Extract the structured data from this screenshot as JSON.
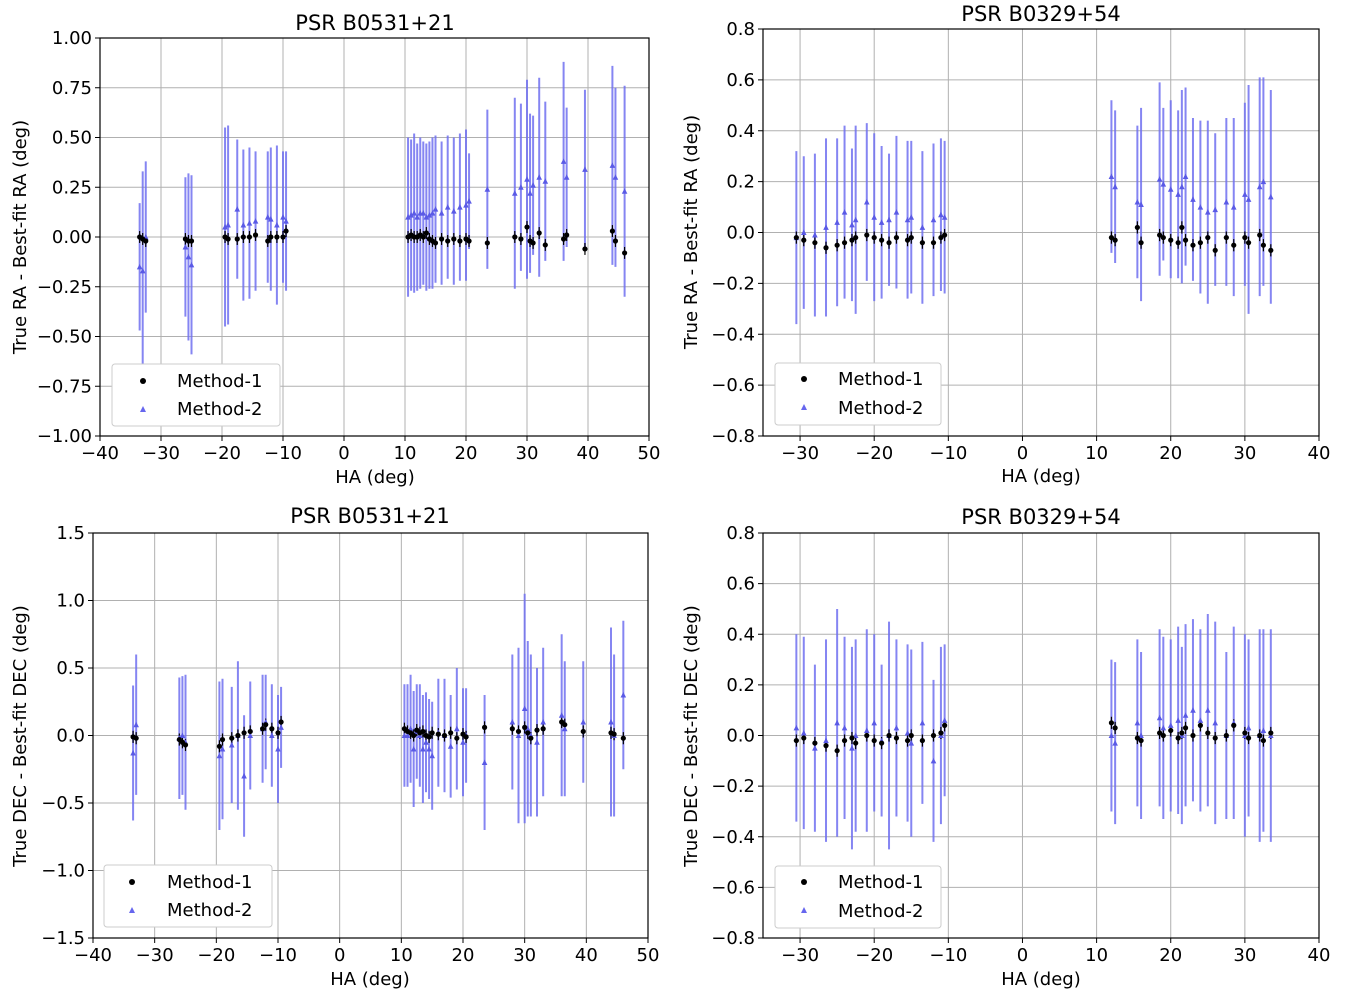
{
  "chart_data": [
    {
      "type": "scatter",
      "title": "PSR B0531+21",
      "xlabel": "HA (deg)",
      "ylabel": "True RA - Best-fit RA (deg)",
      "xlim": [
        -40,
        50
      ],
      "ylim": [
        -1.0,
        1.0
      ],
      "xticks": [
        -40,
        -30,
        -20,
        -10,
        0,
        10,
        20,
        30,
        40,
        50
      ],
      "xtick_labels": [
        "−40",
        "−30",
        "−20",
        "−10",
        "0",
        "10",
        "20",
        "30",
        "40",
        "50"
      ],
      "yticks": [
        -1.0,
        -0.75,
        -0.5,
        -0.25,
        0.0,
        0.25,
        0.5,
        0.75,
        1.0
      ],
      "ytick_labels": [
        "−1.00",
        "−0.75",
        "−0.50",
        "−0.25",
        "0.00",
        "0.25",
        "0.50",
        "0.75",
        "1.00"
      ],
      "grid": true,
      "legend_position": "lower-left",
      "series": [
        {
          "name": "Method-1",
          "marker": "circle",
          "color": "#000000",
          "x": [
            -33.5,
            -33,
            -32.5,
            -26,
            -25.5,
            -25,
            -19.5,
            -19,
            -17.5,
            -16.5,
            -15.5,
            -14.5,
            -12.5,
            -12,
            -11,
            -10,
            -9.5,
            10.5,
            11,
            11.5,
            12,
            12.5,
            13,
            13.5,
            14,
            14.5,
            15,
            16,
            17,
            18,
            19,
            20,
            20.5,
            23.5,
            28,
            29,
            30,
            30.5,
            31,
            32,
            33,
            36,
            36.5,
            39.5,
            44,
            44.5,
            46
          ],
          "y": [
            0.0,
            -0.01,
            -0.02,
            -0.01,
            -0.02,
            -0.02,
            0.0,
            -0.01,
            -0.01,
            0.0,
            0.0,
            0.01,
            -0.02,
            0.0,
            0.0,
            0.0,
            0.03,
            0.0,
            0.01,
            0.0,
            0.0,
            0.01,
            0.0,
            0.02,
            -0.01,
            -0.02,
            -0.03,
            -0.01,
            -0.02,
            -0.01,
            -0.02,
            -0.01,
            -0.02,
            -0.03,
            0.0,
            -0.01,
            0.05,
            -0.02,
            -0.03,
            0.02,
            -0.04,
            -0.01,
            0.01,
            -0.06,
            0.03,
            -0.02,
            -0.08
          ]
        },
        {
          "name": "Method-2",
          "marker": "triangle",
          "color": "#6666ee",
          "x": [
            -33.5,
            -33,
            -32.5,
            -26,
            -25.5,
            -25,
            -19.5,
            -19,
            -17.5,
            -16.5,
            -15.5,
            -14.5,
            -12.5,
            -12,
            -11,
            -10,
            -9.5,
            10.5,
            11,
            11.5,
            12,
            12.5,
            13,
            13.5,
            14,
            14.5,
            15,
            16,
            17,
            18,
            19,
            20,
            20.5,
            23.5,
            28,
            29,
            30,
            30.5,
            31,
            32,
            33,
            36,
            36.5,
            39.5,
            44,
            44.5,
            46
          ],
          "y": [
            -0.15,
            -0.17,
            0.0,
            -0.05,
            -0.1,
            -0.14,
            0.05,
            0.06,
            0.14,
            0.06,
            0.07,
            0.08,
            0.1,
            0.09,
            0.06,
            0.1,
            0.08,
            0.1,
            0.11,
            0.12,
            0.1,
            0.12,
            0.12,
            0.1,
            0.11,
            0.12,
            0.14,
            0.12,
            0.15,
            0.13,
            0.15,
            0.16,
            0.18,
            0.24,
            0.22,
            0.25,
            0.29,
            0.22,
            0.26,
            0.3,
            0.28,
            0.38,
            0.3,
            0.34,
            0.36,
            0.3,
            0.23
          ]
        }
      ]
    },
    {
      "type": "scatter",
      "title": "PSR B0329+54",
      "xlabel": "HA (deg)",
      "ylabel": "True RA - Best-fit RA (deg)",
      "xlim": [
        -35,
        40
      ],
      "ylim": [
        -0.8,
        0.8
      ],
      "xticks": [
        -30,
        -20,
        -10,
        0,
        10,
        20,
        30,
        40
      ],
      "xtick_labels": [
        "−30",
        "−20",
        "−10",
        "0",
        "10",
        "20",
        "30",
        "40"
      ],
      "yticks": [
        -0.8,
        -0.6,
        -0.4,
        -0.2,
        0.0,
        0.2,
        0.4,
        0.6,
        0.8
      ],
      "ytick_labels": [
        "−0.8",
        "−0.6",
        "−0.4",
        "−0.2",
        "0.0",
        "0.2",
        "0.4",
        "0.6",
        "0.8"
      ],
      "grid": true,
      "legend_position": "lower-left",
      "series": [
        {
          "name": "Method-1",
          "marker": "circle",
          "color": "#000000",
          "x": [
            -30.5,
            -29.5,
            -28,
            -26.5,
            -25,
            -24,
            -23,
            -22.5,
            -21,
            -20,
            -19,
            -18,
            -17,
            -15.5,
            -15,
            -13.5,
            -12,
            -11,
            -10.5,
            12,
            12.5,
            15.5,
            16,
            18.5,
            19,
            20,
            21,
            21.5,
            22,
            23,
            24,
            25,
            26,
            27.5,
            28.5,
            30,
            30.5,
            32,
            32.5,
            33.5
          ],
          "y": [
            -0.02,
            -0.03,
            -0.04,
            -0.06,
            -0.05,
            -0.04,
            -0.03,
            -0.02,
            -0.01,
            -0.02,
            -0.03,
            -0.04,
            -0.02,
            -0.03,
            -0.02,
            -0.04,
            -0.04,
            -0.02,
            -0.01,
            -0.02,
            -0.03,
            0.02,
            -0.04,
            -0.01,
            -0.02,
            -0.03,
            -0.04,
            0.02,
            -0.03,
            -0.05,
            -0.04,
            -0.02,
            -0.07,
            -0.02,
            -0.05,
            -0.02,
            -0.04,
            -0.01,
            -0.05,
            -0.07
          ]
        },
        {
          "name": "Method-2",
          "marker": "triangle",
          "color": "#6666ee",
          "x": [
            -30.5,
            -29.5,
            -28,
            -26.5,
            -25,
            -24,
            -23,
            -22.5,
            -21,
            -20,
            -19,
            -18,
            -17,
            -15.5,
            -15,
            -13.5,
            -12,
            -11,
            -10.5,
            12,
            12.5,
            15.5,
            16,
            18.5,
            19,
            20,
            21,
            21.5,
            22,
            23,
            24,
            25,
            26,
            27.5,
            28.5,
            30,
            30.5,
            32,
            32.5,
            33.5
          ],
          "y": [
            -0.02,
            0.0,
            -0.01,
            0.02,
            0.04,
            0.08,
            0.03,
            0.05,
            0.12,
            0.06,
            0.04,
            0.05,
            0.08,
            0.05,
            0.06,
            0.02,
            0.05,
            0.07,
            0.06,
            0.22,
            0.18,
            0.12,
            0.11,
            0.21,
            0.19,
            0.17,
            0.15,
            0.18,
            0.22,
            0.13,
            0.1,
            0.08,
            0.09,
            0.12,
            0.1,
            0.15,
            0.13,
            0.18,
            0.2,
            0.14
          ]
        }
      ]
    },
    {
      "type": "scatter",
      "title": "PSR B0531+21",
      "xlabel": "HA (deg)",
      "ylabel": "True DEC - Best-fit DEC (deg)",
      "xlim": [
        -40,
        50
      ],
      "ylim": [
        -1.5,
        1.5
      ],
      "xticks": [
        -40,
        -30,
        -20,
        -10,
        0,
        10,
        20,
        30,
        40,
        50
      ],
      "xtick_labels": [
        "−40",
        "−30",
        "−20",
        "−10",
        "0",
        "10",
        "20",
        "30",
        "40",
        "50"
      ],
      "yticks": [
        -1.5,
        -1.0,
        -0.5,
        0.0,
        0.5,
        1.0,
        1.5
      ],
      "ytick_labels": [
        "−1.5",
        "−1.0",
        "−0.5",
        "0.0",
        "0.5",
        "1.0",
        "1.5"
      ],
      "grid": true,
      "legend_position": "lower-left",
      "series": [
        {
          "name": "Method-1",
          "marker": "circle",
          "color": "#000000",
          "x": [
            -33.5,
            -33,
            -26,
            -25.5,
            -25,
            -19.5,
            -19,
            -17.5,
            -16.5,
            -15.5,
            -14.5,
            -12.5,
            -12,
            -11,
            -10,
            -9.5,
            10.5,
            11,
            11.5,
            12,
            12.5,
            13,
            13.5,
            14,
            14.5,
            15,
            16,
            17,
            18,
            19,
            20,
            20.5,
            23.5,
            28,
            29,
            30,
            30.5,
            31,
            32,
            33,
            36,
            36.5,
            39.5,
            44,
            44.5,
            46
          ],
          "y": [
            -0.01,
            -0.02,
            -0.03,
            -0.05,
            -0.07,
            -0.08,
            -0.03,
            -0.02,
            0.0,
            0.02,
            0.03,
            0.05,
            0.08,
            0.05,
            0.02,
            0.1,
            0.05,
            0.03,
            0.02,
            0.0,
            0.04,
            0.02,
            0.03,
            0.0,
            -0.01,
            0.02,
            0.01,
            0.0,
            0.02,
            -0.02,
            0.01,
            -0.01,
            0.06,
            0.05,
            0.03,
            0.06,
            0.02,
            -0.02,
            0.04,
            0.05,
            0.1,
            0.08,
            0.03,
            0.02,
            0.01,
            -0.02
          ]
        },
        {
          "name": "Method-2",
          "marker": "triangle",
          "color": "#6666ee",
          "x": [
            -33.5,
            -33,
            -26,
            -25.5,
            -25,
            -19.5,
            -19,
            -17.5,
            -16.5,
            -15.5,
            -14.5,
            -12.5,
            -12,
            -11,
            -10,
            -9.5,
            10.5,
            11,
            11.5,
            12,
            12.5,
            13,
            13.5,
            14,
            14.5,
            15,
            16,
            17,
            18,
            19,
            20,
            20.5,
            23.5,
            28,
            29,
            30,
            30.5,
            31,
            32,
            33,
            36,
            36.5,
            39.5,
            44,
            44.5,
            46
          ],
          "y": [
            -0.13,
            0.08,
            -0.02,
            0.0,
            -0.05,
            -0.15,
            -0.1,
            -0.07,
            0.0,
            -0.3,
            0.0,
            0.05,
            0.1,
            0.0,
            -0.1,
            0.06,
            0.0,
            0.0,
            0.05,
            -0.1,
            0.03,
            0.0,
            -0.1,
            -0.05,
            -0.1,
            -0.15,
            0.02,
            0.0,
            -0.08,
            0.05,
            -0.05,
            0.0,
            -0.2,
            0.1,
            0.0,
            0.2,
            0.05,
            0.0,
            -0.05,
            0.1,
            0.15,
            0.05,
            0.1,
            0.1,
            0.0,
            0.3
          ]
        }
      ]
    },
    {
      "type": "scatter",
      "title": "PSR B0329+54",
      "xlabel": "HA (deg)",
      "ylabel": "True DEC - Best-fit DEC (deg)",
      "xlim": [
        -35,
        40
      ],
      "ylim": [
        -0.8,
        0.8
      ],
      "xticks": [
        -30,
        -20,
        -10,
        0,
        10,
        20,
        30,
        40
      ],
      "xtick_labels": [
        "−30",
        "−20",
        "−10",
        "0",
        "10",
        "20",
        "30",
        "40"
      ],
      "yticks": [
        -0.8,
        -0.6,
        -0.4,
        -0.2,
        0.0,
        0.2,
        0.4,
        0.6,
        0.8
      ],
      "ytick_labels": [
        "−0.8",
        "−0.6",
        "−0.4",
        "−0.2",
        "0.0",
        "0.2",
        "0.4",
        "0.6",
        "0.8"
      ],
      "grid": true,
      "legend_position": "lower-left",
      "series": [
        {
          "name": "Method-1",
          "marker": "circle",
          "color": "#000000",
          "x": [
            -30.5,
            -29.5,
            -28,
            -26.5,
            -25,
            -24,
            -23,
            -22.5,
            -21,
            -20,
            -19,
            -18,
            -17,
            -15.5,
            -15,
            -13.5,
            -12,
            -11,
            -10.5,
            12,
            12.5,
            15.5,
            16,
            18.5,
            19,
            20,
            21,
            21.5,
            22,
            23,
            24,
            25,
            26,
            27.5,
            28.5,
            30,
            30.5,
            32,
            32.5,
            33.5
          ],
          "y": [
            -0.02,
            -0.01,
            -0.03,
            -0.04,
            -0.06,
            -0.02,
            -0.01,
            -0.03,
            0.0,
            -0.02,
            -0.03,
            0.0,
            -0.01,
            -0.02,
            0.0,
            -0.02,
            0.0,
            0.01,
            0.04,
            0.05,
            0.03,
            -0.01,
            -0.02,
            0.01,
            0.0,
            0.02,
            -0.01,
            0.01,
            0.03,
            0.0,
            0.04,
            0.01,
            -0.01,
            0.0,
            0.04,
            0.01,
            -0.01,
            0.0,
            -0.02,
            0.01
          ]
        },
        {
          "name": "Method-2",
          "marker": "triangle",
          "color": "#6666ee",
          "x": [
            -30.5,
            -29.5,
            -28,
            -26.5,
            -25,
            -24,
            -23,
            -22.5,
            -21,
            -20,
            -19,
            -18,
            -17,
            -15.5,
            -15,
            -13.5,
            -12,
            -11,
            -10.5,
            12,
            12.5,
            15.5,
            16,
            18.5,
            19,
            20,
            21,
            21.5,
            22,
            23,
            24,
            25,
            26,
            27.5,
            28.5,
            30,
            30.5,
            32,
            32.5,
            33.5
          ],
          "y": [
            0.03,
            0.01,
            -0.05,
            -0.02,
            0.05,
            0.03,
            -0.05,
            0.0,
            0.02,
            0.05,
            -0.02,
            0.0,
            0.03,
            0.01,
            -0.03,
            0.05,
            -0.1,
            0.0,
            0.06,
            0.0,
            -0.03,
            0.05,
            0.0,
            0.07,
            0.03,
            0.04,
            0.06,
            0.0,
            0.08,
            0.1,
            0.06,
            0.1,
            0.05,
            0.0,
            0.05,
            0.0,
            0.03,
            0.0,
            0.02,
            0.0
          ]
        }
      ]
    }
  ],
  "error_bar_halfwidths": [
    [
      0.32,
      0.5,
      0.38,
      0.35,
      0.42,
      0.45,
      0.5,
      0.5,
      0.35,
      0.38,
      0.38,
      0.35,
      0.33,
      0.36,
      0.4,
      0.33,
      0.35,
      0.4,
      0.38,
      0.4,
      0.37,
      0.38,
      0.36,
      0.37,
      0.37,
      0.38,
      0.37,
      0.36,
      0.36,
      0.37,
      0.37,
      0.38,
      0.24,
      0.4,
      0.48,
      0.42,
      0.5,
      0.4,
      0.35,
      0.5,
      0.4,
      0.5,
      0.35,
      0.4,
      0.5,
      0.45,
      0.53
    ],
    [
      0.34,
      0.3,
      0.32,
      0.35,
      0.33,
      0.34,
      0.3,
      0.37,
      0.31,
      0.33,
      0.3,
      0.26,
      0.3,
      0.31,
      0.3,
      0.3,
      0.3,
      0.3,
      0.3,
      0.3,
      0.3,
      0.3,
      0.38,
      0.38,
      0.3,
      0.35,
      0.33,
      0.38,
      0.35,
      0.32,
      0.34,
      0.36,
      0.3,
      0.33,
      0.35,
      0.36,
      0.45,
      0.43,
      0.41,
      0.42
    ],
    [
      0.5,
      0.52,
      0.45,
      0.44,
      0.5,
      0.55,
      0.52,
      0.43,
      0.55,
      0.45,
      0.4,
      0.4,
      0.35,
      0.38,
      0.4,
      0.3,
      0.38,
      0.38,
      0.4,
      0.43,
      0.35,
      0.38,
      0.4,
      0.37,
      0.37,
      0.4,
      0.4,
      0.42,
      0.38,
      0.45,
      0.4,
      0.35,
      0.5,
      0.5,
      0.65,
      0.85,
      0.65,
      0.6,
      0.55,
      0.55,
      0.6,
      0.5,
      0.45,
      0.7,
      0.6,
      0.55
    ],
    [
      0.37,
      0.38,
      0.33,
      0.4,
      0.45,
      0.36,
      0.4,
      0.38,
      0.4,
      0.35,
      0.3,
      0.45,
      0.35,
      0.35,
      0.37,
      0.32,
      0.32,
      0.35,
      0.3,
      0.3,
      0.32,
      0.33,
      0.33,
      0.35,
      0.36,
      0.34,
      0.37,
      0.35,
      0.36,
      0.36,
      0.36,
      0.38,
      0.4,
      0.33,
      0.38,
      0.4,
      0.35,
      0.42,
      0.4,
      0.42
    ]
  ]
}
